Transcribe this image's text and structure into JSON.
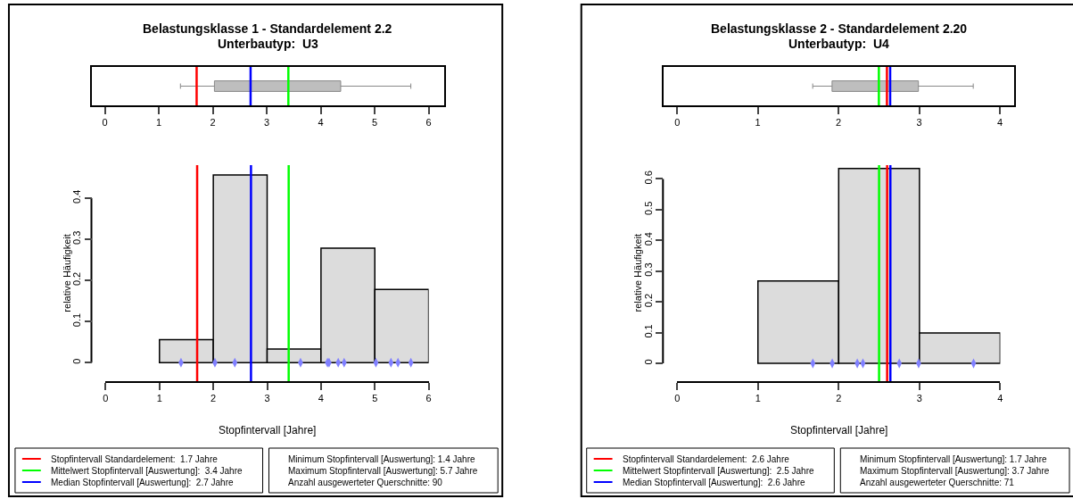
{
  "chart_data": [
    {
      "type": "box",
      "title": "Belastungsklasse 1 - Standardelement 2.2",
      "subtitle": "Unterbautyp:  U3",
      "orientation": "horizontal",
      "categories": [
        null
      ],
      "color": "#bebebe",
      "boxes": [
        {
          "low": 1.4,
          "q1": 2.03,
          "median": 2.7,
          "q3": 4.37,
          "high": 5.67
        }
      ],
      "xlim": [
        -0.25,
        6.28
      ],
      "xticks": [
        0,
        1,
        2,
        3,
        4,
        5,
        6
      ],
      "ref_lines": [
        {
          "axis": "x",
          "value": 1.7,
          "color": "#ff0000"
        },
        {
          "axis": "x",
          "value": 3.4,
          "color": "#00ff00"
        },
        {
          "axis": "x",
          "value": 2.7,
          "color": "#0000ff"
        }
      ]
    },
    {
      "type": "histogram",
      "bins": [
        1,
        2,
        3,
        4,
        5,
        6
      ],
      "values": [
        0.056,
        0.456,
        0.033,
        0.278,
        0.178
      ],
      "color": "#dcdcdc",
      "xlim": [
        0,
        6
      ],
      "xticks": [
        0,
        1,
        2,
        3,
        4,
        5,
        6
      ],
      "ylim": [
        -0.045,
        0.48
      ],
      "yticks": [
        0,
        0.1,
        0.2,
        0.3,
        0.4
      ],
      "xlabel": "Stopfintervall [Jahre]",
      "ylabel": "relative Häufigkeit",
      "legend": "bottom left",
      "series": [
        {
          "type": "scatter",
          "color": "#8080ff",
          "x": [
            1.4,
            2.03,
            2.4,
            3.62,
            4.12,
            4.15,
            4.32,
            4.43,
            5.02,
            5.3,
            5.43,
            5.67
          ],
          "values": [
            0,
            0,
            0,
            0,
            0,
            0,
            0,
            0,
            0,
            0,
            0,
            0
          ]
        }
      ],
      "ref_lines": [
        {
          "axis": "x",
          "value": 1.7,
          "color": "#ff0000",
          "label": "Stopfintervall Standardelement:  1.7 Jahre"
        },
        {
          "axis": "x",
          "value": 3.4,
          "color": "#00ff00",
          "label": "Mittelwert Stopfintervall [Auswertung]:  3.4 Jahre"
        },
        {
          "axis": "x",
          "value": 2.7,
          "color": "#0000ff",
          "label": "Median Stopfintervall [Auswertung]:  2.7 Jahre"
        }
      ],
      "annotations": [
        "Minimum Stopfintervall [Auswertung]: 1.4 Jahre",
        "Maximum Stopfintervall [Auswertung]: 5.7 Jahre",
        "Anzahl ausgewerteter Querschnitte: 90"
      ]
    },
    {
      "type": "box",
      "title": "Belastungsklasse 2 - Standardelement 2.20",
      "subtitle": "Unterbautyp:  U4",
      "orientation": "horizontal",
      "categories": [
        null
      ],
      "color": "#bebebe",
      "boxes": [
        {
          "low": 1.68,
          "q1": 1.92,
          "median": 2.64,
          "q3": 2.99,
          "high": 3.67
        }
      ],
      "xlim": [
        -0.165,
        4.18
      ],
      "xticks": [
        0,
        1,
        2,
        3,
        4
      ],
      "ref_lines": [
        {
          "axis": "x",
          "value": 2.6,
          "color": "#ff0000"
        },
        {
          "axis": "x",
          "value": 2.5,
          "color": "#00ff00"
        },
        {
          "axis": "x",
          "value": 2.64,
          "color": "#0000ff"
        }
      ]
    },
    {
      "type": "histogram",
      "bins": [
        1,
        2,
        3,
        4
      ],
      "values": [
        0.268,
        0.634,
        0.099
      ],
      "color": "#dcdcdc",
      "xlim": [
        0,
        4
      ],
      "xticks": [
        0,
        1,
        2,
        3,
        4
      ],
      "ylim": [
        -0.058,
        0.645
      ],
      "yticks": [
        0,
        0.1,
        0.2,
        0.3,
        0.4,
        0.5,
        0.6
      ],
      "xlabel": "Stopfintervall [Jahre]",
      "ylabel": "relative Häufigkeit",
      "legend": "bottom left",
      "series": [
        {
          "type": "scatter",
          "color": "#8080ff",
          "x": [
            1.68,
            1.92,
            2.23,
            2.3,
            2.75,
            2.99,
            3.67
          ],
          "values": [
            0,
            0,
            0,
            0,
            0,
            0,
            0
          ]
        }
      ],
      "ref_lines": [
        {
          "axis": "x",
          "value": 2.6,
          "color": "#ff0000",
          "label": "Stopfintervall Standardelement:  2.6 Jahre"
        },
        {
          "axis": "x",
          "value": 2.5,
          "color": "#00ff00",
          "label": "Mittelwert Stopfintervall [Auswertung]:  2.5 Jahre"
        },
        {
          "axis": "x",
          "value": 2.64,
          "color": "#0000ff",
          "label": "Median Stopfintervall [Auswertung]:  2.6 Jahre"
        }
      ],
      "annotations": [
        "Minimum Stopfintervall [Auswertung]: 1.7 Jahre",
        "Maximum Stopfintervall [Auswertung]: 3.7 Jahre",
        "Anzahl ausgewerteter Querschnitte: 71"
      ]
    }
  ]
}
